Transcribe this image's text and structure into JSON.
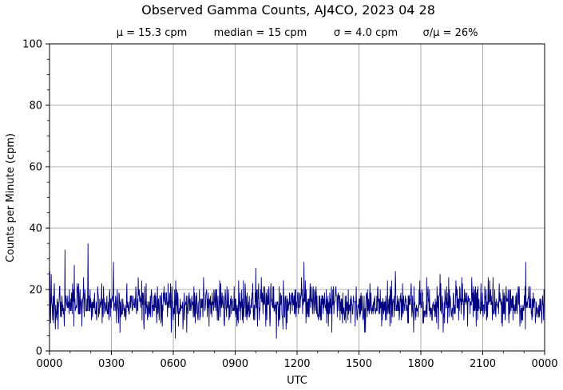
{
  "chart_data": {
    "type": "line",
    "title": "Observed Gamma Counts, AJ4CO, 2023 04 28",
    "subtitle_stats": [
      "μ = 15.3 cpm",
      "median = 15 cpm",
      "σ = 4.0 cpm",
      "σ/μ = 26%"
    ],
    "xlabel": "UTC",
    "ylabel": "Counts per Minute (cpm)",
    "x_unit": "minutes of day (UTC)",
    "xlim": [
      0,
      1440
    ],
    "ylim": [
      0,
      100
    ],
    "x_ticks": [
      0,
      180,
      360,
      540,
      720,
      900,
      1080,
      1260,
      1440
    ],
    "x_tick_labels": [
      "0000",
      "0300",
      "0600",
      "0900",
      "1200",
      "1500",
      "1800",
      "2100",
      "0000"
    ],
    "y_ticks": [
      0,
      20,
      40,
      60,
      80,
      100
    ],
    "y_tick_labels": [
      "0",
      "20",
      "40",
      "60",
      "80",
      "100"
    ],
    "grid": true,
    "line_color": "#000080",
    "series": [
      {
        "sample_interval_min": 1,
        "mean": 15.3,
        "median": 15,
        "std": 4.0,
        "notable_points": [
          {
            "x": 1,
            "y": 26
          },
          {
            "x": 5,
            "y": 25
          },
          {
            "x": 45,
            "y": 33
          },
          {
            "x": 72,
            "y": 28
          },
          {
            "x": 112,
            "y": 35
          },
          {
            "x": 186,
            "y": 29
          },
          {
            "x": 366,
            "y": 4
          },
          {
            "x": 600,
            "y": 27
          },
          {
            "x": 660,
            "y": 4
          },
          {
            "x": 740,
            "y": 29
          },
          {
            "x": 1006,
            "y": 26
          },
          {
            "x": 1136,
            "y": 25
          },
          {
            "x": 1385,
            "y": 29
          },
          {
            "x": 1384,
            "y": 7
          }
        ]
      }
    ]
  }
}
